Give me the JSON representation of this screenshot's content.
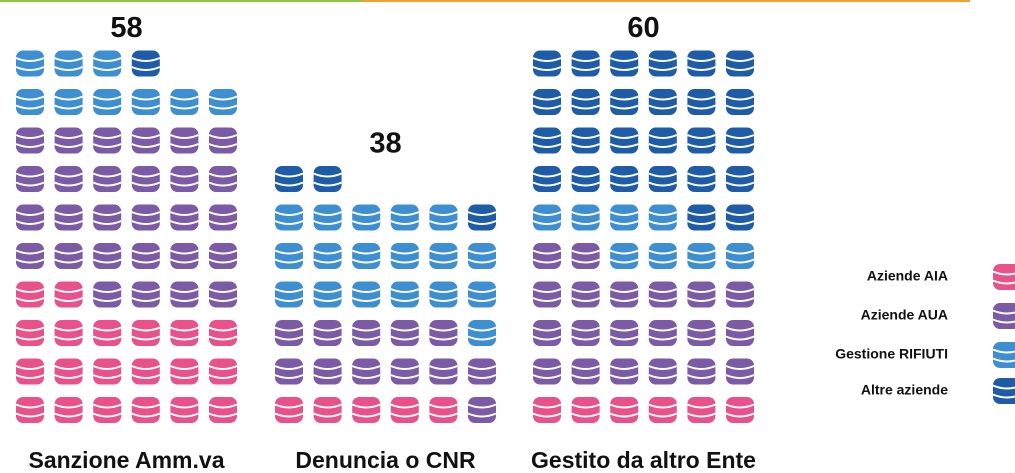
{
  "chart_data": {
    "type": "pictograph",
    "categories": [
      "Sanzione Amm.va",
      "Denuncia o CNR",
      "Gestito da altro Ente"
    ],
    "totals": [
      58,
      38,
      60
    ],
    "series": [
      {
        "name": "Aziende AIA",
        "color": "#e9518b",
        "values": [
          20,
          5,
          6
        ]
      },
      {
        "name": "Aziende AUA",
        "color": "#7b5aa6",
        "values": [
          28,
          12,
          20
        ]
      },
      {
        "name": "Gestione RIFIUTI",
        "color": "#3e8fd1",
        "values": [
          9,
          18,
          8
        ]
      },
      {
        "name": "Altre aziende",
        "color": "#1f5ca7",
        "values": [
          1,
          3,
          26
        ]
      }
    ]
  }
}
